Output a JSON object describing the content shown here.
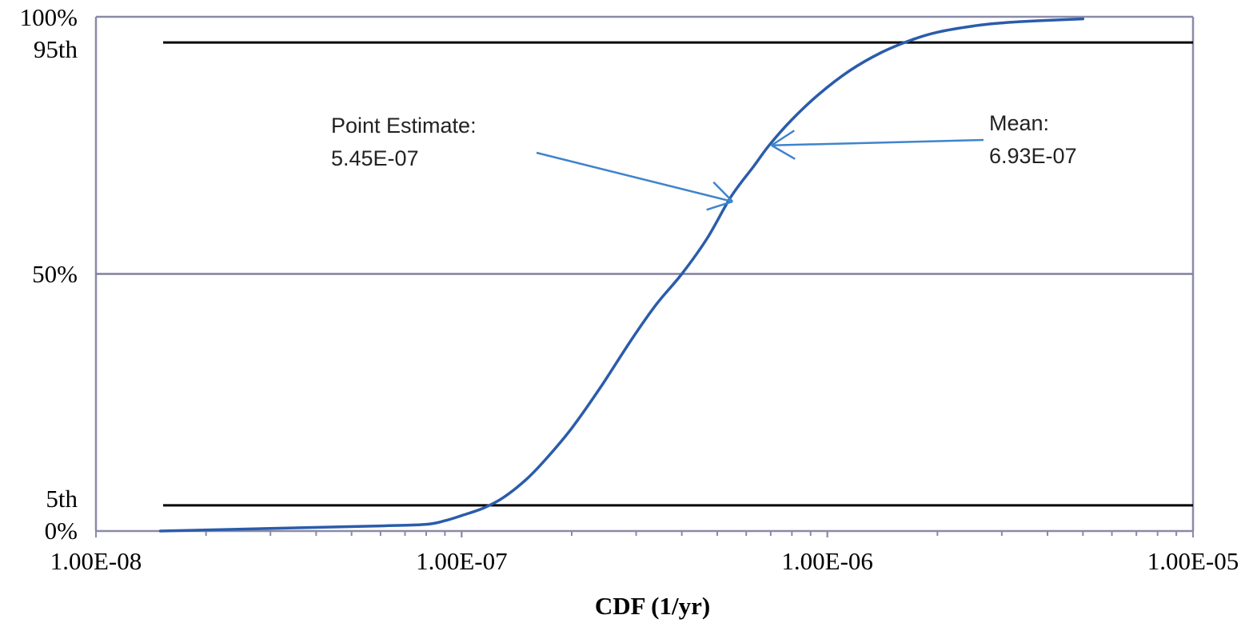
{
  "chart_data": {
    "type": "line",
    "title": "",
    "xlabel": "CDF (1/yr)",
    "ylabel": "",
    "xscale": "log",
    "xlim": [
      1e-08,
      1e-05
    ],
    "ylim": [
      0,
      100
    ],
    "x_tick_labels": [
      {
        "value": 1e-08,
        "label": "1.00E-08"
      },
      {
        "value": 1e-07,
        "label": "1.00E-07"
      },
      {
        "value": 1e-06,
        "label": "1.00E-06"
      },
      {
        "value": 1e-05,
        "label": "1.00E-05"
      }
    ],
    "y_tick_labels": [
      {
        "value": 100,
        "label": "100%"
      },
      {
        "value": 95,
        "label": "95th"
      },
      {
        "value": 50,
        "label": "50%"
      },
      {
        "value": 5,
        "label": "5th"
      },
      {
        "value": 0,
        "label": "0%"
      }
    ],
    "reference_lines": [
      {
        "y": 95,
        "label": "95th",
        "color": "#000000"
      },
      {
        "y": 50,
        "label": "50%",
        "color": "#8080a0"
      },
      {
        "y": 5,
        "label": "5th",
        "color": "#000000"
      },
      {
        "y": 100,
        "label": "100%",
        "color": "#8080a0"
      }
    ],
    "series": [
      {
        "color": "#2a5caa",
        "x": [
          1.5e-08,
          3e-08,
          6e-08,
          8e-08,
          9e-08,
          1e-07,
          1.15e-07,
          1.3e-07,
          1.5e-07,
          1.7e-07,
          2e-07,
          2.4e-07,
          2.9e-07,
          3.4e-07,
          4e-07,
          4.7e-07,
          5.45e-07,
          6.3e-07,
          6.93e-07,
          8e-07,
          9.5e-07,
          1.15e-06,
          1.4e-06,
          1.7e-06,
          2e-06,
          2.5e-06,
          3e-06,
          3.7e-06,
          5e-06
        ],
        "y": [
          0,
          0.5,
          1.0,
          1.3,
          2.0,
          3.0,
          4.5,
          6.5,
          10,
          14,
          20,
          28,
          37,
          44,
          50,
          57,
          65,
          71,
          75,
          80,
          85,
          89.5,
          93,
          95.5,
          97,
          98.2,
          98.8,
          99.2,
          99.6
        ]
      }
    ],
    "annotations": [
      {
        "label_line1": "Point Estimate:",
        "label_line2": "5.45E-07",
        "x": 5.45e-07,
        "y": 65
      },
      {
        "label_line1": "Mean:",
        "label_line2": "6.93E-07",
        "x": 6.93e-07,
        "y": 75
      }
    ],
    "grid": false,
    "legend": "none"
  }
}
